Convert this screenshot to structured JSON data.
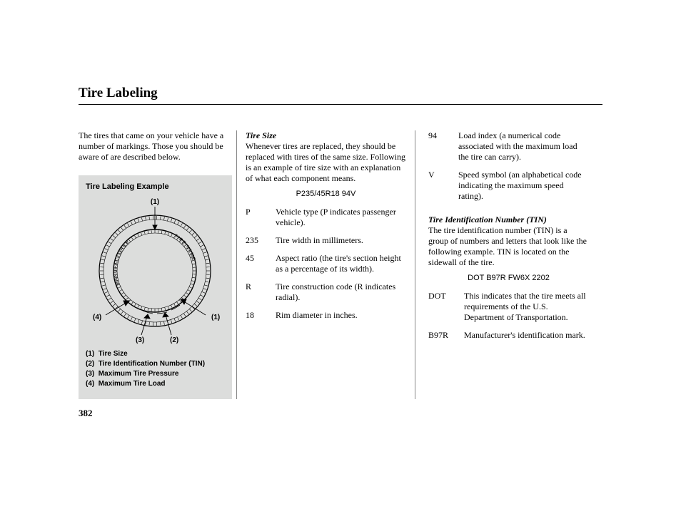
{
  "page": {
    "title": "Tire Labeling",
    "number": "382"
  },
  "col1": {
    "intro": "The tires that came on your vehicle have a number of markings. Those you should be aware of are described below.",
    "example": {
      "title": "Tire Labeling Example",
      "callouts": {
        "c1": "(1)",
        "c2": "(2)",
        "c3": "(3)",
        "c4": "(4)"
      },
      "ring_top_text": "MANUFACTURER",
      "ring_right_text": "TIRE  NAME",
      "legend": [
        {
          "num": "(1)",
          "text": "Tire Size"
        },
        {
          "num": "(2)",
          "text": "Tire Identification Number (TIN)"
        },
        {
          "num": "(3)",
          "text": "Maximum Tire Pressure"
        },
        {
          "num": "(4)",
          "text": "Maximum Tire Load"
        }
      ]
    }
  },
  "col2": {
    "heading": "Tire Size",
    "intro": "Whenever tires are replaced, they should be replaced with tires of the same size. Following is an example of tire size with an explanation of what each component means.",
    "code": "P235/45R18 94V",
    "items": [
      {
        "k": "P",
        "v": "Vehicle type (P indicates passenger vehicle)."
      },
      {
        "k": "235",
        "v": "Tire width in millimeters."
      },
      {
        "k": "45",
        "v": "Aspect ratio (the tire's section height as a percentage of its width)."
      },
      {
        "k": "R",
        "v": "Tire construction code (R indicates radial)."
      },
      {
        "k": "18",
        "v": "Rim diameter in inches."
      }
    ]
  },
  "col3": {
    "cont_items": [
      {
        "k": "94",
        "v": "Load index (a numerical code associated with the maximum load the tire can carry)."
      },
      {
        "k": "V",
        "v": "Speed symbol (an alphabetical code indicating the maximum speed rating)."
      }
    ],
    "heading": "Tire Identification Number (TIN)",
    "intro": "The tire identification number (TIN) is a group of numbers and letters that look like the following example. TIN is located on the sidewall of the tire.",
    "code": "DOT B97R FW6X 2202",
    "items": [
      {
        "k": "DOT",
        "v": "This indicates that the tire meets all requirements of the U.S. Department of Transportation."
      },
      {
        "k": "B97R",
        "v": "Manufacturer's identification mark."
      }
    ]
  },
  "svg": {
    "stroke": "#000000",
    "fill_bg": "#dcdddc",
    "fill_ring": "#e8e8e8"
  }
}
